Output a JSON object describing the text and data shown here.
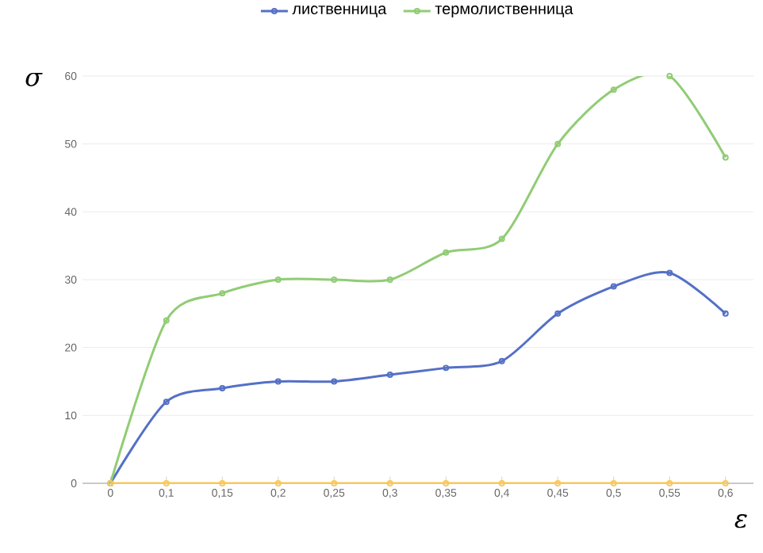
{
  "chart_data": {
    "type": "line",
    "xlabel": "ε",
    "ylabel": "σ",
    "categories": [
      "0",
      "0,1",
      "0,15",
      "0,2",
      "0,25",
      "0,3",
      "0,35",
      "0,4",
      "0,45",
      "0,5",
      "0,55",
      "0,6"
    ],
    "series": [
      {
        "name": "лиственница",
        "color": "#5470c6",
        "values": [
          0,
          12,
          14,
          15,
          15,
          16,
          17,
          18,
          25,
          29,
          31,
          25
        ]
      },
      {
        "name": "термолиственница",
        "color": "#91cc75",
        "values": [
          0,
          24,
          28,
          30,
          30,
          30,
          34,
          36,
          50,
          58,
          60,
          48
        ]
      },
      {
        "color": "#fac858",
        "values": [
          0,
          0,
          0,
          0,
          0,
          0,
          0,
          0,
          0,
          0,
          0,
          0
        ]
      }
    ],
    "ylim": [
      0,
      60
    ],
    "yticks": [
      0,
      10,
      20,
      30,
      40,
      50,
      60
    ],
    "grid": "y",
    "legend": "top",
    "marker": "circle",
    "line_style": "solid"
  }
}
